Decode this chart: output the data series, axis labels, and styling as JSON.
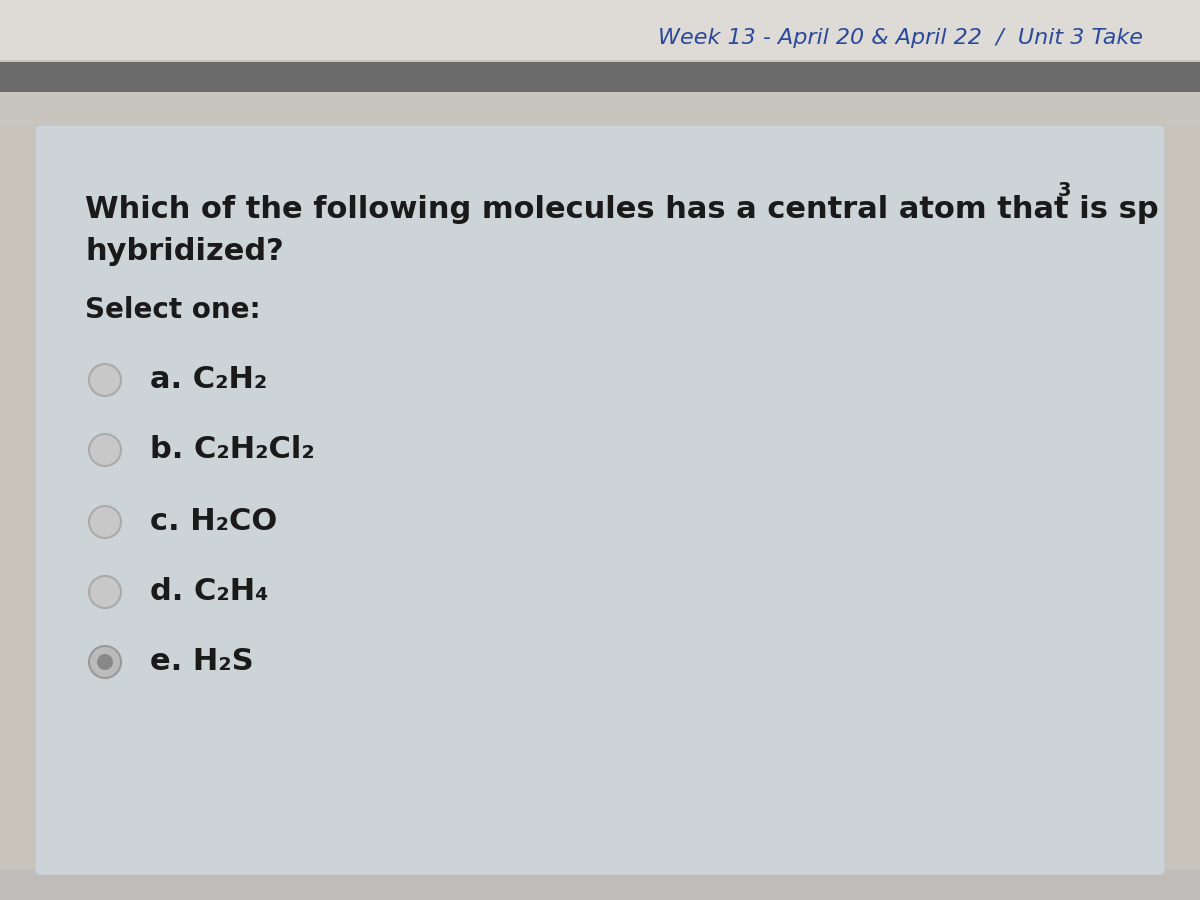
{
  "header_text": "Week 13 - April 20 & April 22  /  Unit 3 Take",
  "header_color": "#2B4A9B",
  "bg_outer": "#C8C4BC",
  "bg_mid": "#D5D2CC",
  "dark_bar_color": "#6B6B6B",
  "card_bg": "#CDD4D8",
  "question_line1": "Which of the following molecules has a central atom that is sp",
  "question_sup": "3",
  "question_line2": "hybridized?",
  "select_text": "Select one:",
  "options": [
    {
      "label": "a.",
      "formula": "C₂H₂",
      "selected": false
    },
    {
      "label": "b.",
      "formula": "C₂H₂Cl₂",
      "selected": false
    },
    {
      "label": "c.",
      "formula": "H₂CO",
      "selected": false
    },
    {
      "label": "d.",
      "formula": "C₂H₄",
      "selected": false
    },
    {
      "label": "e.",
      "formula": "H₂S",
      "selected": true
    }
  ],
  "text_color": "#1A1A1A",
  "font_size_question": 22,
  "font_size_select": 20,
  "font_size_options": 22,
  "header_font_size": 16,
  "radio_outer_empty": "#C8C8C8",
  "radio_border_empty": "#AAAAAA",
  "radio_outer_filled": "#BBBBBB",
  "radio_border_filled": "#999999",
  "radio_inner_filled": "#888888"
}
